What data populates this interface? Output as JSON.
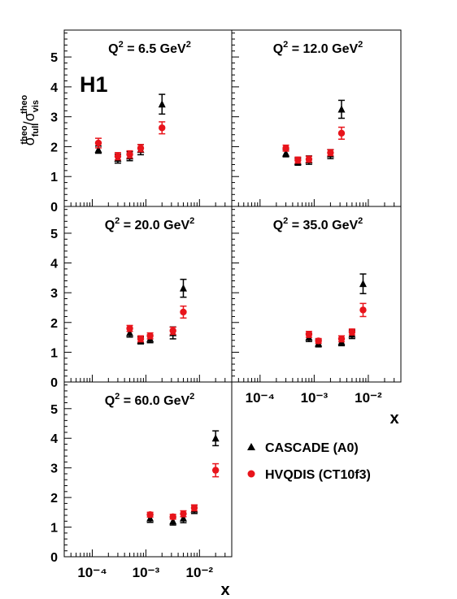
{
  "figure": {
    "logo": "H1",
    "ylabel": {
      "sym1": "σ",
      "sub1": "full",
      "sup1": "theo",
      "slash": "/",
      "sym2": "σ",
      "sub2": "vis",
      "sup2": "theo"
    },
    "xlabel": "x"
  },
  "colors": {
    "cascade": "#000000",
    "hvqdis": "#e8141b",
    "axis": "#000000"
  },
  "chart_data": [
    {
      "type": "scatter",
      "panel": "q2-6.5",
      "title": {
        "pre": "Q",
        "sup": "2",
        "post": " = 6.5 GeV",
        "sup2": "2"
      },
      "xscale": "log",
      "xlim": [
        3e-05,
        0.04
      ],
      "ylim": [
        0,
        5.9
      ],
      "yticks": [
        "0",
        "1",
        "2",
        "3",
        "4",
        "5"
      ],
      "xticks": [],
      "series": [
        {
          "name": "CASCADE (A0)",
          "marker": "triangle",
          "x": [
            0.00013,
            0.0003,
            0.0005,
            0.0008,
            0.002
          ],
          "y": [
            1.9,
            1.6,
            1.68,
            1.9,
            3.42
          ],
          "err": [
            0.12,
            0.15,
            0.15,
            0.17,
            0.33
          ]
        },
        {
          "name": "HVQDIS (CT10f3)",
          "marker": "circle",
          "x": [
            0.00013,
            0.0003,
            0.0005,
            0.0008,
            0.002
          ],
          "y": [
            2.12,
            1.68,
            1.74,
            1.95,
            2.63
          ],
          "err": [
            0.16,
            0.12,
            0.12,
            0.12,
            0.2
          ]
        }
      ]
    },
    {
      "type": "scatter",
      "panel": "q2-12.0",
      "title": {
        "pre": "Q",
        "sup": "2",
        "post": " = 12.0 GeV",
        "sup2": "2"
      },
      "xscale": "log",
      "xlim": [
        3e-05,
        0.04
      ],
      "ylim": [
        0,
        5.9
      ],
      "yticks": [],
      "xticks": [],
      "series": [
        {
          "name": "CASCADE (A0)",
          "marker": "triangle",
          "x": [
            0.0003,
            0.0005,
            0.0008,
            0.002,
            0.0032
          ],
          "y": [
            1.78,
            1.5,
            1.55,
            1.75,
            3.25
          ],
          "err": [
            0.12,
            0.12,
            0.14,
            0.15,
            0.3
          ]
        },
        {
          "name": "HVQDIS (CT10f3)",
          "marker": "circle",
          "x": [
            0.0003,
            0.0005,
            0.0008,
            0.002,
            0.0032
          ],
          "y": [
            1.95,
            1.55,
            1.58,
            1.8,
            2.45
          ],
          "err": [
            0.1,
            0.1,
            0.1,
            0.1,
            0.2
          ]
        }
      ]
    },
    {
      "type": "scatter",
      "panel": "q2-20.0",
      "title": {
        "pre": "Q",
        "sup": "2",
        "post": " = 20.0 GeV",
        "sup2": "2"
      },
      "xscale": "log",
      "xlim": [
        3e-05,
        0.04
      ],
      "ylim": [
        0,
        5.9
      ],
      "yticks": [
        "0",
        "1",
        "2",
        "3",
        "4",
        "5"
      ],
      "xticks": [],
      "series": [
        {
          "name": "CASCADE (A0)",
          "marker": "triangle",
          "x": [
            0.0005,
            0.0008,
            0.0012,
            0.0032,
            0.005
          ],
          "y": [
            1.65,
            1.4,
            1.45,
            1.65,
            3.15
          ],
          "err": [
            0.14,
            0.12,
            0.13,
            0.2,
            0.3
          ]
        },
        {
          "name": "HVQDIS (CT10f3)",
          "marker": "circle",
          "x": [
            0.0005,
            0.0008,
            0.0012,
            0.0032,
            0.005
          ],
          "y": [
            1.8,
            1.45,
            1.55,
            1.72,
            2.35
          ],
          "err": [
            0.1,
            0.1,
            0.1,
            0.12,
            0.2
          ]
        }
      ]
    },
    {
      "type": "scatter",
      "panel": "q2-35.0",
      "title": {
        "pre": "Q",
        "sup": "2",
        "post": " = 35.0 GeV",
        "sup2": "2"
      },
      "xscale": "log",
      "xlim": [
        3e-05,
        0.04
      ],
      "ylim": [
        0,
        5.9
      ],
      "yticks": [],
      "xticks": [
        "10⁻⁴",
        "10⁻³",
        "10⁻²"
      ],
      "series": [
        {
          "name": "CASCADE (A0)",
          "marker": "triangle",
          "x": [
            0.0008,
            0.0012,
            0.0032,
            0.005,
            0.008
          ],
          "y": [
            1.5,
            1.3,
            1.35,
            1.6,
            3.3
          ],
          "err": [
            0.14,
            0.12,
            0.13,
            0.14,
            0.33
          ]
        },
        {
          "name": "HVQDIS (CT10f3)",
          "marker": "circle",
          "x": [
            0.0008,
            0.0012,
            0.0032,
            0.005,
            0.008
          ],
          "y": [
            1.6,
            1.38,
            1.45,
            1.68,
            2.42
          ],
          "err": [
            0.1,
            0.08,
            0.1,
            0.1,
            0.22
          ]
        }
      ]
    },
    {
      "type": "scatter",
      "panel": "q2-60.0",
      "title": {
        "pre": "Q",
        "sup": "2",
        "post": " = 60.0 GeV",
        "sup2": "2"
      },
      "xscale": "log",
      "xlim": [
        3e-05,
        0.04
      ],
      "ylim": [
        0,
        5.9
      ],
      "yticks": [
        "0",
        "1",
        "2",
        "3",
        "4",
        "5"
      ],
      "xticks": [
        "10⁻⁴",
        "10⁻³",
        "10⁻²"
      ],
      "series": [
        {
          "name": "CASCADE (A0)",
          "marker": "triangle",
          "x": [
            0.0012,
            0.0032,
            0.005,
            0.008,
            0.02
          ],
          "y": [
            1.3,
            1.2,
            1.3,
            1.6,
            4.0
          ],
          "err": [
            0.14,
            0.13,
            0.15,
            0.14,
            0.25
          ]
        },
        {
          "name": "HVQDIS (CT10f3)",
          "marker": "circle",
          "x": [
            0.0012,
            0.0032,
            0.005,
            0.008,
            0.02
          ],
          "y": [
            1.42,
            1.35,
            1.45,
            1.65,
            2.92
          ],
          "err": [
            0.08,
            0.08,
            0.1,
            0.1,
            0.22
          ]
        }
      ]
    }
  ],
  "legend": {
    "items": [
      {
        "label": "CASCADE (A0)",
        "marker": "triangle"
      },
      {
        "label": "HVQDIS (CT10f3)",
        "marker": "circle"
      }
    ]
  }
}
